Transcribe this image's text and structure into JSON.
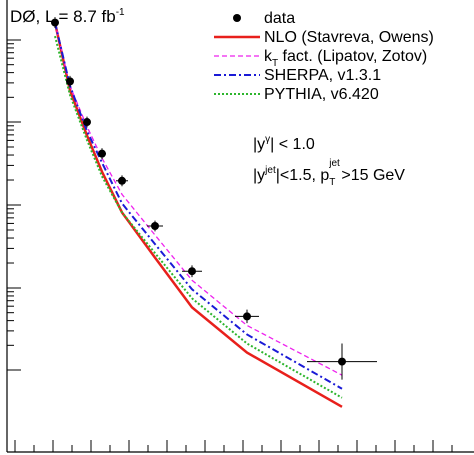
{
  "chart_data": {
    "type": "scatter",
    "title": "DØ, L = 8.7 fb",
    "title_sup": "-1",
    "annotation_1": {
      "pre": "|y",
      "sup": "γ",
      "post": "| < 1.0"
    },
    "annotation_2": {
      "pre1": "|y",
      "sup1": "jet",
      "mid": "|<1.5, p",
      "sup2": "jet",
      "sub2": "T",
      "post": ">15 GeV"
    },
    "x": [
      1,
      2,
      3,
      4,
      5,
      6,
      7,
      8,
      9
    ],
    "series": [
      {
        "name": "data",
        "kind": "points",
        "color": "#000000",
        "values": [
          0.95,
          0.82,
          0.73,
          0.66,
          0.6,
          0.5,
          0.4,
          0.3,
          0.2
        ],
        "xerr": [
          0.3,
          0.3,
          0.3,
          0.4,
          0.6,
          0.8,
          1.0,
          1.2,
          3.5
        ],
        "yerr": [
          0.012,
          0.012,
          0.012,
          0.012,
          0.012,
          0.012,
          0.013,
          0.015,
          0.04
        ]
      },
      {
        "name": "NLO (Stavreva, Owens)",
        "kind": "line",
        "color": "#e8201c",
        "style": "solid",
        "values": [
          0.95,
          0.8,
          0.7,
          0.62,
          0.53,
          0.43,
          0.32,
          0.22,
          0.1
        ]
      },
      {
        "name": "k",
        "name_sub": "T",
        "name_post": " fact. (Lipatov, Zotov)",
        "kind": "line",
        "color": "#ee22ee",
        "style": "dashed",
        "values": [
          0.95,
          0.81,
          0.72,
          0.65,
          0.57,
          0.48,
          0.38,
          0.28,
          0.17
        ]
      },
      {
        "name": "SHERPA, v1.3.1",
        "kind": "line",
        "color": "#1a1ad6",
        "style": "dashdot",
        "values": [
          0.95,
          0.81,
          0.71,
          0.64,
          0.55,
          0.46,
          0.36,
          0.26,
          0.14
        ]
      },
      {
        "name": "PYTHIA, v6.420",
        "kind": "line",
        "color": "#2db52d",
        "style": "dotted",
        "values": [
          0.92,
          0.79,
          0.69,
          0.61,
          0.53,
          0.44,
          0.34,
          0.24,
          0.12
        ]
      }
    ],
    "yscale": "log",
    "legend": "top-right",
    "grid": false
  }
}
